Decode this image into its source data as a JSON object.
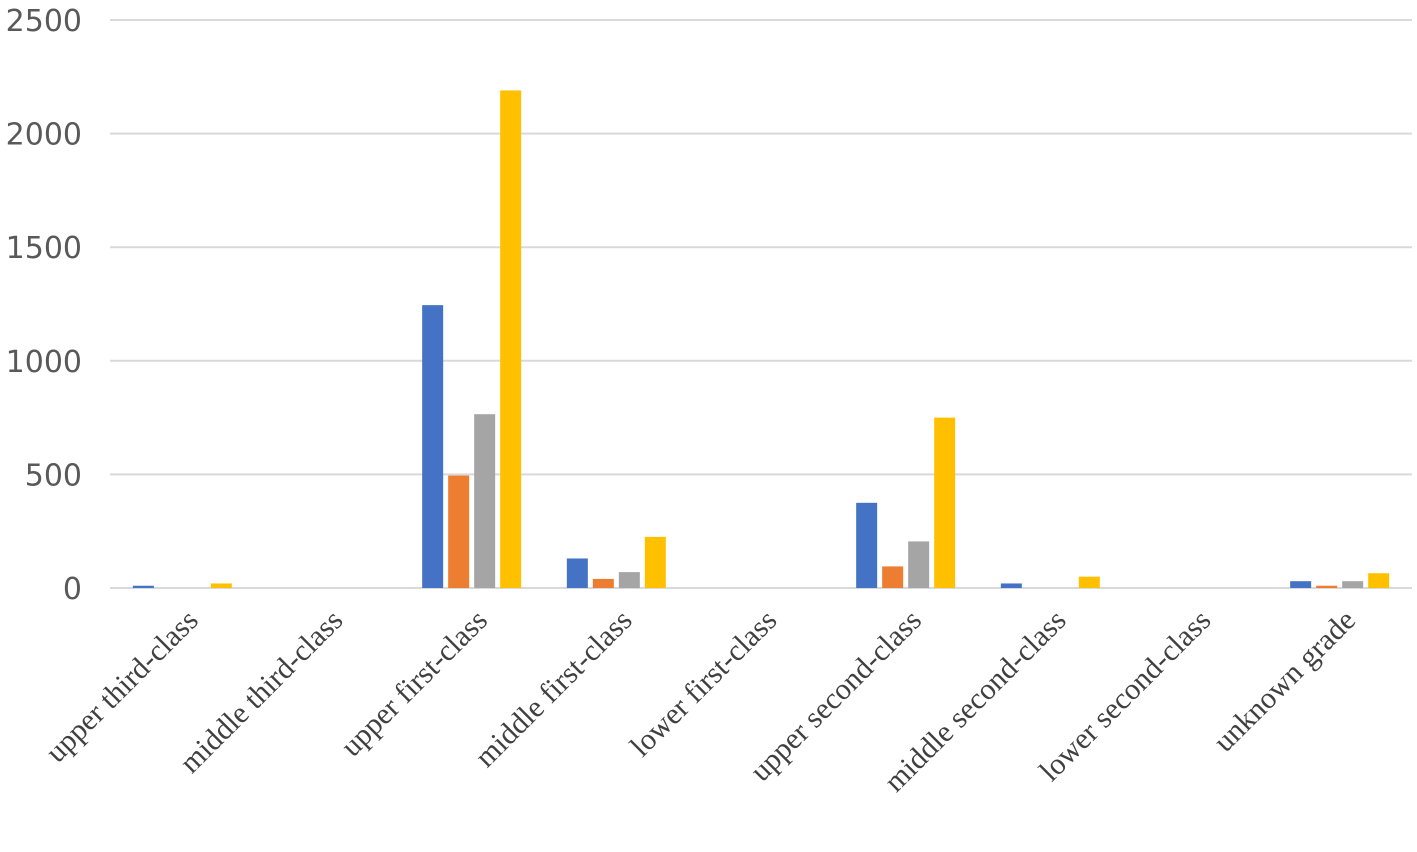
{
  "chart_data": {
    "type": "bar",
    "categories": [
      "upper third-class",
      "middle third-class",
      "upper first-class",
      "middle first-class",
      "lower first-class",
      "upper second-class",
      "middle second-class",
      "lower second-class",
      "unknown grade"
    ],
    "series": [
      {
        "color": "#4472C4",
        "values": [
          10,
          0,
          1245,
          130,
          0,
          375,
          20,
          0,
          30
        ]
      },
      {
        "color": "#ED7D31",
        "values": [
          0,
          0,
          495,
          40,
          0,
          95,
          0,
          0,
          10
        ]
      },
      {
        "color": "#A5A5A5",
        "values": [
          0,
          0,
          765,
          70,
          0,
          205,
          0,
          0,
          30
        ]
      },
      {
        "color": "#FFC000",
        "values": [
          20,
          0,
          2190,
          225,
          0,
          750,
          50,
          0,
          65
        ]
      }
    ],
    "ylim": [
      0,
      2500
    ],
    "yticks": [
      "0",
      "500",
      "1000",
      "1500",
      "2000",
      "2500"
    ],
    "ytick_values": [
      0,
      500,
      1000,
      1500,
      2000,
      2500
    ],
    "grid": true,
    "legend": "none"
  }
}
